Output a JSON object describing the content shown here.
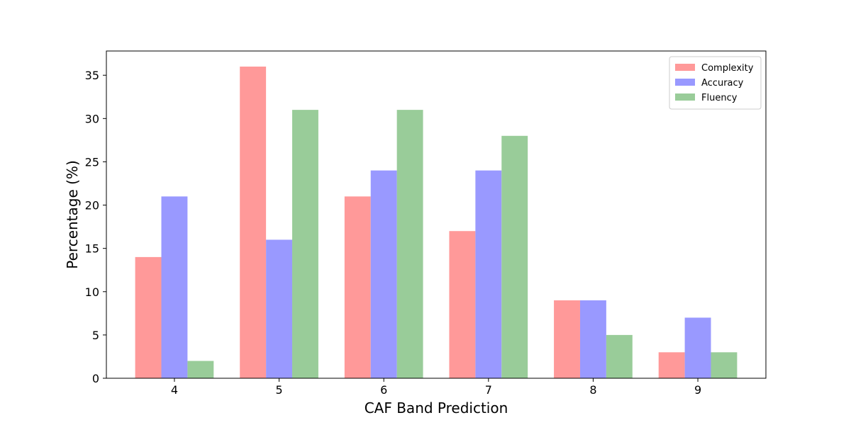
{
  "chart_data": {
    "type": "bar",
    "categories": [
      "4",
      "5",
      "6",
      "7",
      "8",
      "9"
    ],
    "series": [
      {
        "name": "Complexity",
        "values": [
          14,
          36,
          21,
          17,
          9,
          3
        ],
        "color": "#ff9999"
      },
      {
        "name": "Accuracy",
        "values": [
          21,
          16,
          24,
          24,
          9,
          7
        ],
        "color": "#9999ff"
      },
      {
        "name": "Fluency",
        "values": [
          2,
          31,
          31,
          28,
          5,
          3
        ],
        "color": "#99cc99"
      }
    ],
    "xlabel": "CAF Band Prediction",
    "ylabel": "Percentage (%)",
    "ylim": [
      0,
      37.8
    ],
    "yticks": [
      0,
      5,
      10,
      15,
      20,
      25,
      30,
      35
    ],
    "grid": false,
    "legend_position": "top-right"
  }
}
